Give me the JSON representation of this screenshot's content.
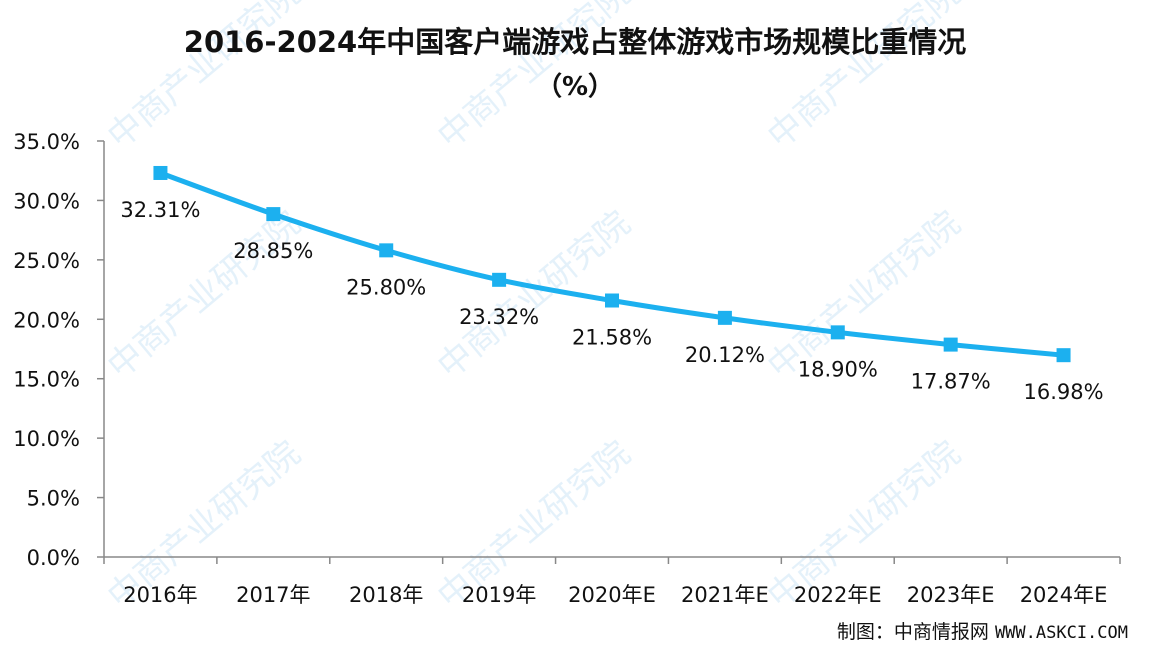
{
  "chart_data": {
    "type": "line",
    "title": "2016-2024年中国客户端游戏占整体游戏市场规模比重情况",
    "subtitle": "（%）",
    "categories": [
      "2016年",
      "2017年",
      "2018年",
      "2019年",
      "2020年E",
      "2021年E",
      "2022年E",
      "2023年E",
      "2024年E"
    ],
    "series": [
      {
        "values": [
          32.31,
          28.85,
          25.8,
          23.32,
          21.58,
          20.12,
          18.9,
          17.87,
          16.98
        ]
      }
    ],
    "data_labels": [
      "32.31%",
      "28.85%",
      "25.80%",
      "23.32%",
      "21.58%",
      "20.12%",
      "18.90%",
      "17.87%",
      "16.98%"
    ],
    "y_ticks": [
      "0.0%",
      "5.0%",
      "10.0%",
      "15.0%",
      "20.0%",
      "25.0%",
      "30.0%",
      "35.0%"
    ],
    "ylim": [
      0,
      35
    ],
    "grid": false,
    "legend": "none",
    "line_color": "#1cb0ef"
  },
  "source": {
    "label": "制图：中商情报网",
    "url": "WWW.ASKCI.COM"
  },
  "watermark": "中商产业研究院"
}
